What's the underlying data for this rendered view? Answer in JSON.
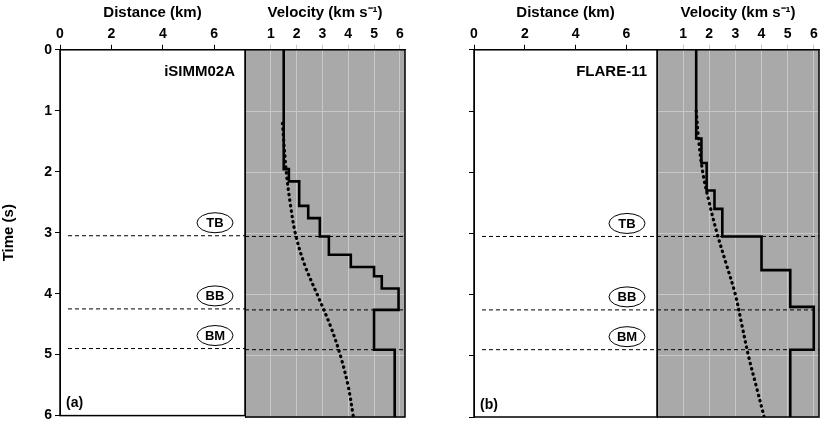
{
  "chart_data": [
    {
      "type": "line",
      "title": "iSIMM02A",
      "panel_label": "(a)",
      "xlabel": "Distance (km)",
      "ylabel": "Time (s)",
      "xlim": [
        0,
        7.2
      ],
      "xticks": [
        0,
        2,
        4,
        6
      ],
      "ylim": [
        0,
        6
      ],
      "yticks": [
        0,
        1,
        2,
        3,
        4,
        5,
        6
      ],
      "grid": false,
      "series": [],
      "horizons": [
        {
          "name": "TB",
          "value": 3.05
        },
        {
          "name": "BB",
          "value": 4.25
        },
        {
          "name": "BM",
          "value": 4.9
        }
      ]
    },
    {
      "type": "line",
      "xlabel": "Velocity (km s⁻¹)",
      "xlim": [
        0,
        6.2
      ],
      "xticks": [
        1,
        2,
        3,
        4,
        5,
        6
      ],
      "ylim": [
        0,
        6
      ],
      "yticks": [
        0,
        1,
        2,
        3,
        4,
        5,
        6
      ],
      "grid": true,
      "tick_labels": "x",
      "horizons": [
        {
          "value": 3.05
        },
        {
          "value": 4.25
        },
        {
          "value": 4.9
        }
      ],
      "series": [
        {
          "color": "#000000",
          "line_style": "solid",
          "x": [
            1.5,
            1.5,
            1.7,
            1.7,
            2.1,
            2.1,
            2.45,
            2.45,
            2.9,
            2.9,
            3.25,
            3.25,
            4.1,
            4.1,
            5.0,
            5.0,
            5.3,
            5.3,
            5.95,
            5.95,
            5.0,
            5.0,
            5.8,
            5.8
          ],
          "y": [
            0,
            1.95,
            1.95,
            2.15,
            2.15,
            2.55,
            2.55,
            2.75,
            2.75,
            3.05,
            3.05,
            3.35,
            3.35,
            3.55,
            3.55,
            3.7,
            3.7,
            3.9,
            3.9,
            4.25,
            4.25,
            4.9,
            4.9,
            6
          ]
        },
        {
          "color": "#000000",
          "line_style": "dotted",
          "x": [
            1.45,
            1.6,
            1.75,
            1.95,
            2.3,
            2.8,
            3.3,
            3.7,
            4.0,
            4.2
          ],
          "y": [
            1.2,
            2.0,
            2.5,
            3.0,
            3.5,
            4.0,
            4.5,
            5.0,
            5.5,
            6.0
          ]
        }
      ]
    },
    {
      "type": "line",
      "title": "FLARE-11",
      "panel_label": "(b)",
      "xlabel": "Distance (km)",
      "xlim": [
        0,
        7.2
      ],
      "xticks": [
        0,
        2,
        4,
        6
      ],
      "ylim": [
        0,
        6
      ],
      "yticks": [
        0,
        1,
        2,
        3,
        4,
        5,
        6
      ],
      "grid": false,
      "tick_labels": "x",
      "series": [],
      "horizons": [
        {
          "name": "TB",
          "value": 3.05
        },
        {
          "name": "BB",
          "value": 4.25
        },
        {
          "name": "BM",
          "value": 4.9
        }
      ]
    },
    {
      "type": "line",
      "xlabel": "Velocity (km s⁻¹)",
      "xlim": [
        0,
        6.2
      ],
      "xticks": [
        1,
        2,
        3,
        4,
        5,
        6
      ],
      "ylim": [
        0,
        6
      ],
      "yticks": [
        0,
        1,
        2,
        3,
        4,
        5,
        6
      ],
      "grid": true,
      "tick_labels": "x",
      "horizons": [
        {
          "value": 3.05
        },
        {
          "value": 4.25
        },
        {
          "value": 4.9
        }
      ],
      "series": [
        {
          "color": "#000000",
          "line_style": "solid",
          "x": [
            1.5,
            1.5,
            1.7,
            1.7,
            1.9,
            1.9,
            2.2,
            2.2,
            2.5,
            2.5,
            4.0,
            4.0,
            5.1,
            5.1,
            6.0,
            6.0,
            5.1,
            5.1
          ],
          "y": [
            0,
            1.45,
            1.45,
            1.85,
            1.85,
            2.3,
            2.3,
            2.6,
            2.6,
            3.05,
            3.05,
            3.6,
            3.6,
            4.2,
            4.2,
            4.9,
            4.9,
            6
          ]
        },
        {
          "color": "#000000",
          "line_style": "dotted",
          "x": [
            1.5,
            1.6,
            1.75,
            2.0,
            2.3,
            2.65,
            3.0,
            3.25,
            3.5,
            3.8,
            4.1
          ],
          "y": [
            1.0,
            1.5,
            2.0,
            2.5,
            3.0,
            3.5,
            4.0,
            4.5,
            5.0,
            5.5,
            6.0
          ]
        }
      ]
    }
  ]
}
